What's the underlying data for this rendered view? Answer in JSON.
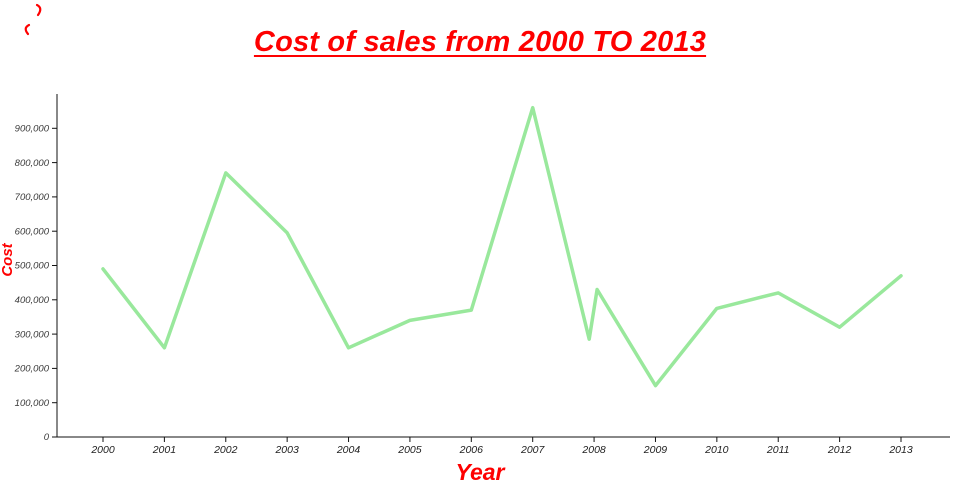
{
  "page": {
    "background": "#ffffff"
  },
  "colors": {
    "accent_red": "#fe0000",
    "line_green": "#99e89c",
    "axis": "#111111",
    "y_tick_label": "#3a3a3a",
    "x_tick_label": "#222222"
  },
  "chart_data": {
    "type": "line",
    "title": "Cost of sales from 2000 TO 2013",
    "xlabel": "Year",
    "ylabel": "Cost",
    "categories": [
      "2000",
      "2001",
      "2002",
      "2003",
      "2004",
      "2005",
      "2006",
      "2007",
      "2008",
      "2009",
      "2010",
      "2011",
      "2012",
      "2013"
    ],
    "x": [
      2000,
      2001,
      2002,
      2003,
      2004,
      2005,
      2006,
      2007,
      2007.92,
      2008.05,
      2009,
      2010,
      2011,
      2012,
      2013
    ],
    "y": [
      490000,
      260000,
      770000,
      595000,
      260000,
      340000,
      370000,
      960000,
      285000,
      430000,
      150000,
      375000,
      420000,
      320000,
      470000
    ],
    "y_ticks": [
      0,
      100000,
      200000,
      300000,
      400000,
      500000,
      600000,
      700000,
      800000,
      900000
    ],
    "y_tick_labels": [
      "0",
      "100,000",
      "200,000",
      "300,000",
      "400,000",
      "500,000",
      "600,000",
      "700,000",
      "800,000",
      "900,000"
    ],
    "ylim": [
      0,
      1000000
    ],
    "xlim_years": [
      2000,
      2013
    ],
    "grid": false,
    "legend": false,
    "line_width": 3.5
  }
}
